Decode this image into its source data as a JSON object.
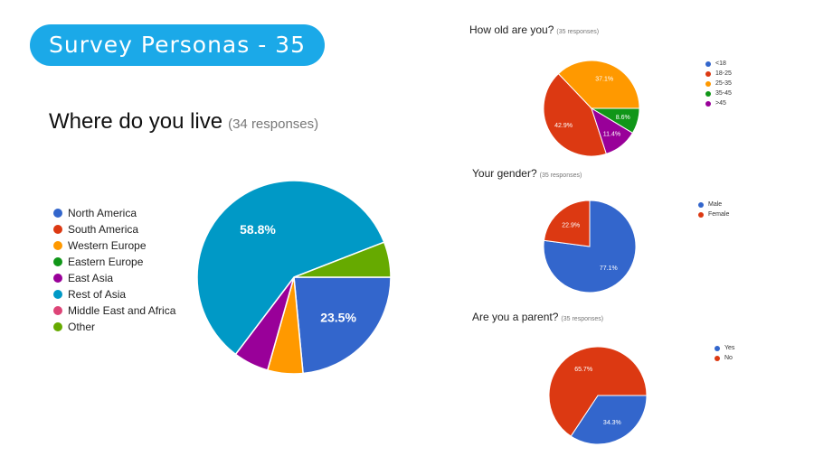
{
  "banner": "Survey Personas - 35",
  "chart_data": [
    {
      "type": "pie",
      "title": "Where do you live",
      "responses": "(34 responses)",
      "labels": [
        "North America",
        "South America",
        "Western Europe",
        "Eastern Europe",
        "East Asia",
        "Rest of Asia",
        "Middle East and Africa",
        "Other"
      ],
      "values": [
        23.5,
        0,
        5.9,
        0,
        5.9,
        58.8,
        0,
        5.9
      ],
      "colors": [
        "#3366cc",
        "#dc3912",
        "#ff9900",
        "#109618",
        "#990099",
        "#0099c6",
        "#dd4477",
        "#66aa00"
      ],
      "slice_labels": [
        "23.5%",
        "",
        "",
        "",
        "",
        "58.8%",
        "",
        ""
      ],
      "legend_position": "left"
    },
    {
      "type": "pie",
      "title": "How old are you?",
      "responses": "(35 responses)",
      "labels": [
        "<18",
        "18-25",
        "25-35",
        "35-45",
        ">45"
      ],
      "values": [
        0,
        42.9,
        37.1,
        8.6,
        11.4
      ],
      "colors": [
        "#3366cc",
        "#dc3912",
        "#ff9900",
        "#109618",
        "#990099"
      ],
      "slice_labels": [
        "",
        "42.9%",
        "37.1%",
        "8.6%",
        "11.4%"
      ],
      "legend_position": "right"
    },
    {
      "type": "pie",
      "title": "Your gender?",
      "responses": "(35 responses)",
      "labels": [
        "Male",
        "Female"
      ],
      "values": [
        77.1,
        22.9
      ],
      "colors": [
        "#3366cc",
        "#dc3912"
      ],
      "slice_labels": [
        "77.1%",
        "22.9%"
      ],
      "legend_position": "right"
    },
    {
      "type": "pie",
      "title": "Are you a parent?",
      "responses": "(35 responses)",
      "labels": [
        "Yes",
        "No"
      ],
      "values": [
        34.3,
        65.7
      ],
      "colors": [
        "#3366cc",
        "#dc3912"
      ],
      "slice_labels": [
        "34.3%",
        "65.7%"
      ],
      "legend_position": "right"
    }
  ]
}
